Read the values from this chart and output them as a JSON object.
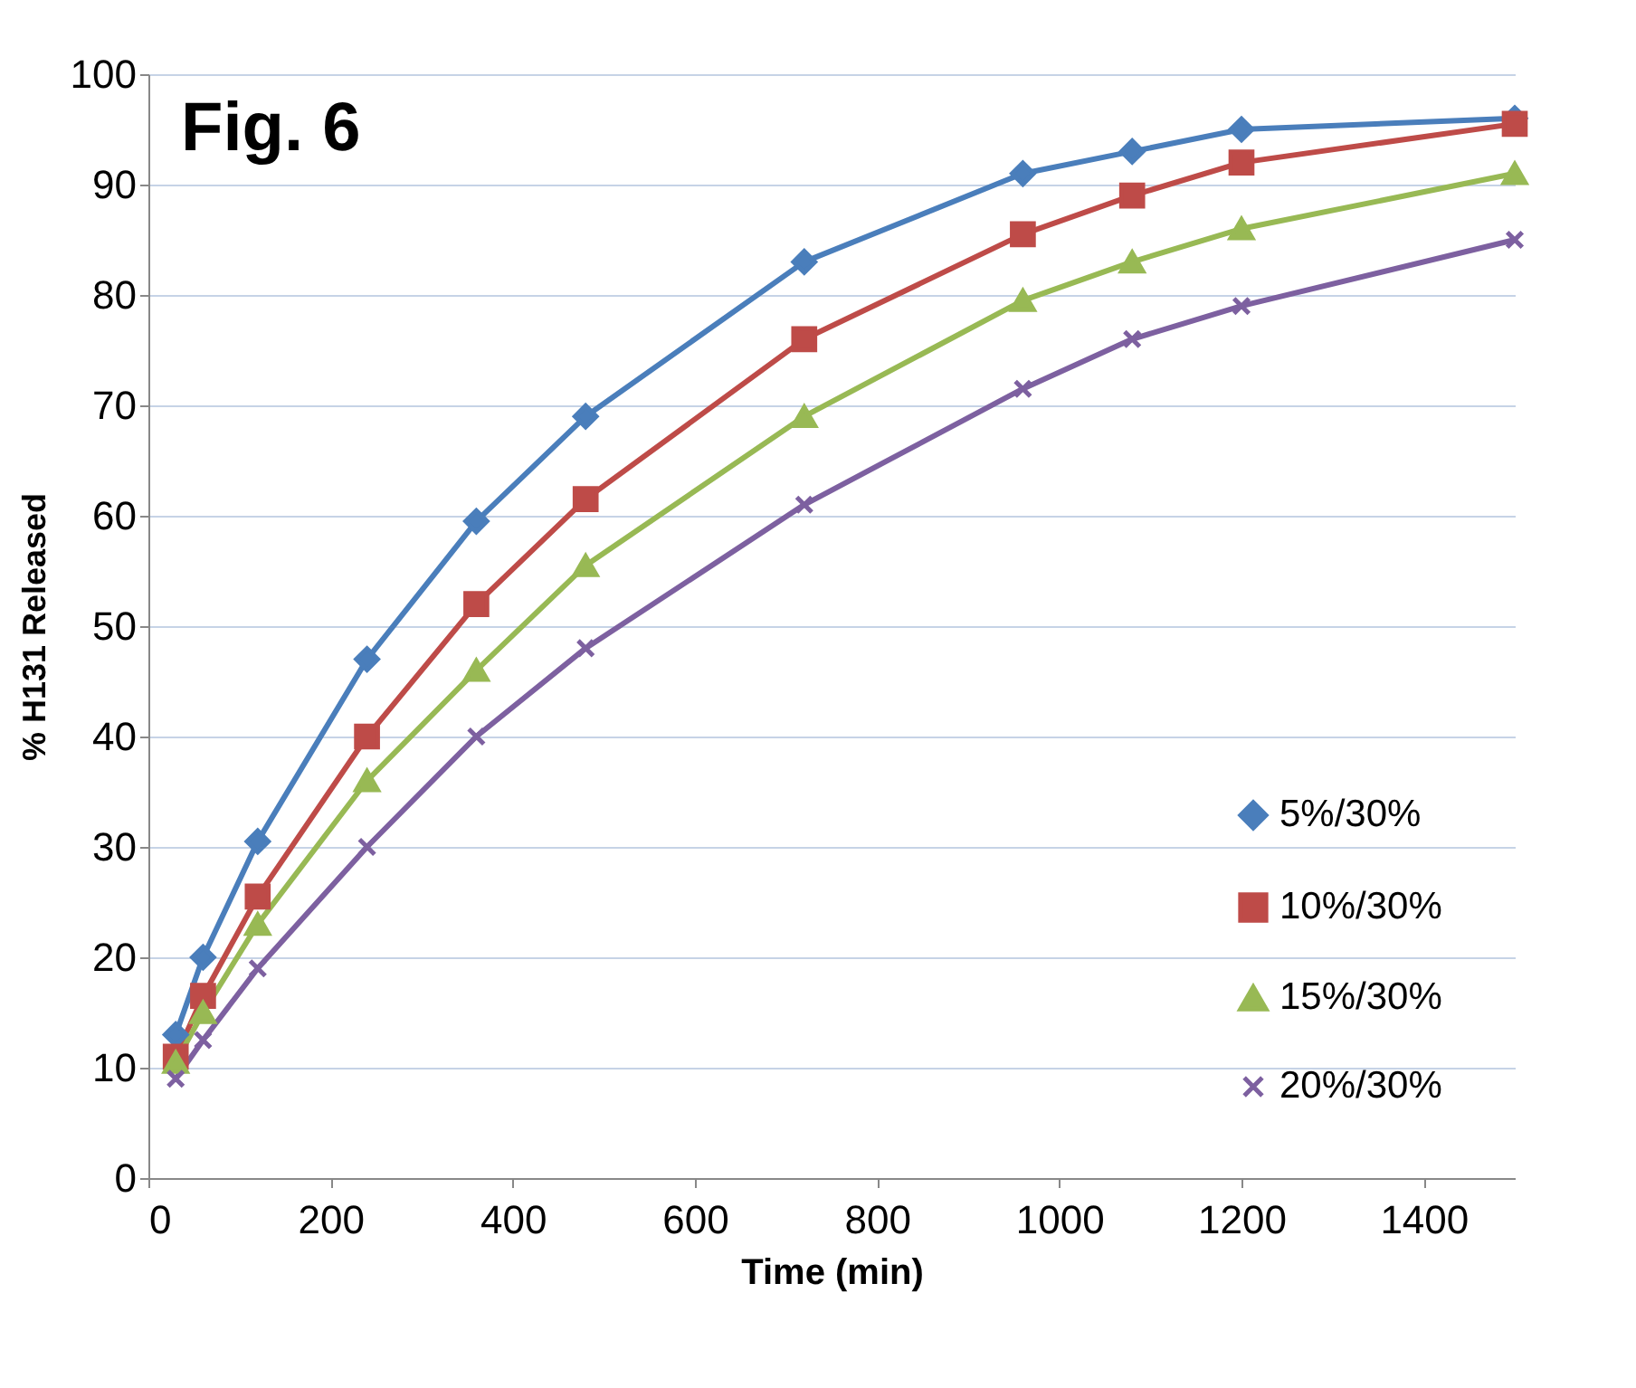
{
  "chart_data": {
    "type": "line",
    "xlabel": "Time (min)",
    "ylabel": "% H131 Released",
    "annotations": [
      "Fig. 6"
    ],
    "x": [
      30,
      60,
      120,
      240,
      360,
      480,
      720,
      960,
      1080,
      1200,
      1500
    ],
    "xlim": [
      0,
      1500
    ],
    "xticks": [
      0,
      200,
      400,
      600,
      800,
      1000,
      1200,
      1400
    ],
    "ylim": [
      0,
      100
    ],
    "yticks": [
      0,
      10,
      20,
      30,
      40,
      50,
      60,
      70,
      80,
      90,
      100
    ],
    "grid": "y",
    "legend": "bottom right",
    "series": [
      {
        "name": "5%/30%",
        "color": "#4a7ebb",
        "marker": "diamond",
        "values": [
          13,
          20,
          30.5,
          47,
          59.5,
          69,
          83,
          91,
          93,
          95,
          96
        ]
      },
      {
        "name": "10%/30%",
        "color": "#be4b48",
        "marker": "square",
        "values": [
          11,
          16.5,
          25.5,
          40,
          52,
          61.5,
          76,
          85.5,
          89,
          92,
          95.5
        ]
      },
      {
        "name": "15%/30%",
        "color": "#98b954",
        "marker": "triangle",
        "values": [
          10.5,
          15,
          23,
          36,
          46,
          55.5,
          69,
          79.5,
          83,
          86,
          91
        ]
      },
      {
        "name": "20%/30%",
        "color": "#7d60a0",
        "marker": "cross",
        "values": [
          9,
          12.5,
          19,
          30,
          40,
          48,
          61,
          71.5,
          76,
          79,
          85
        ]
      }
    ]
  }
}
